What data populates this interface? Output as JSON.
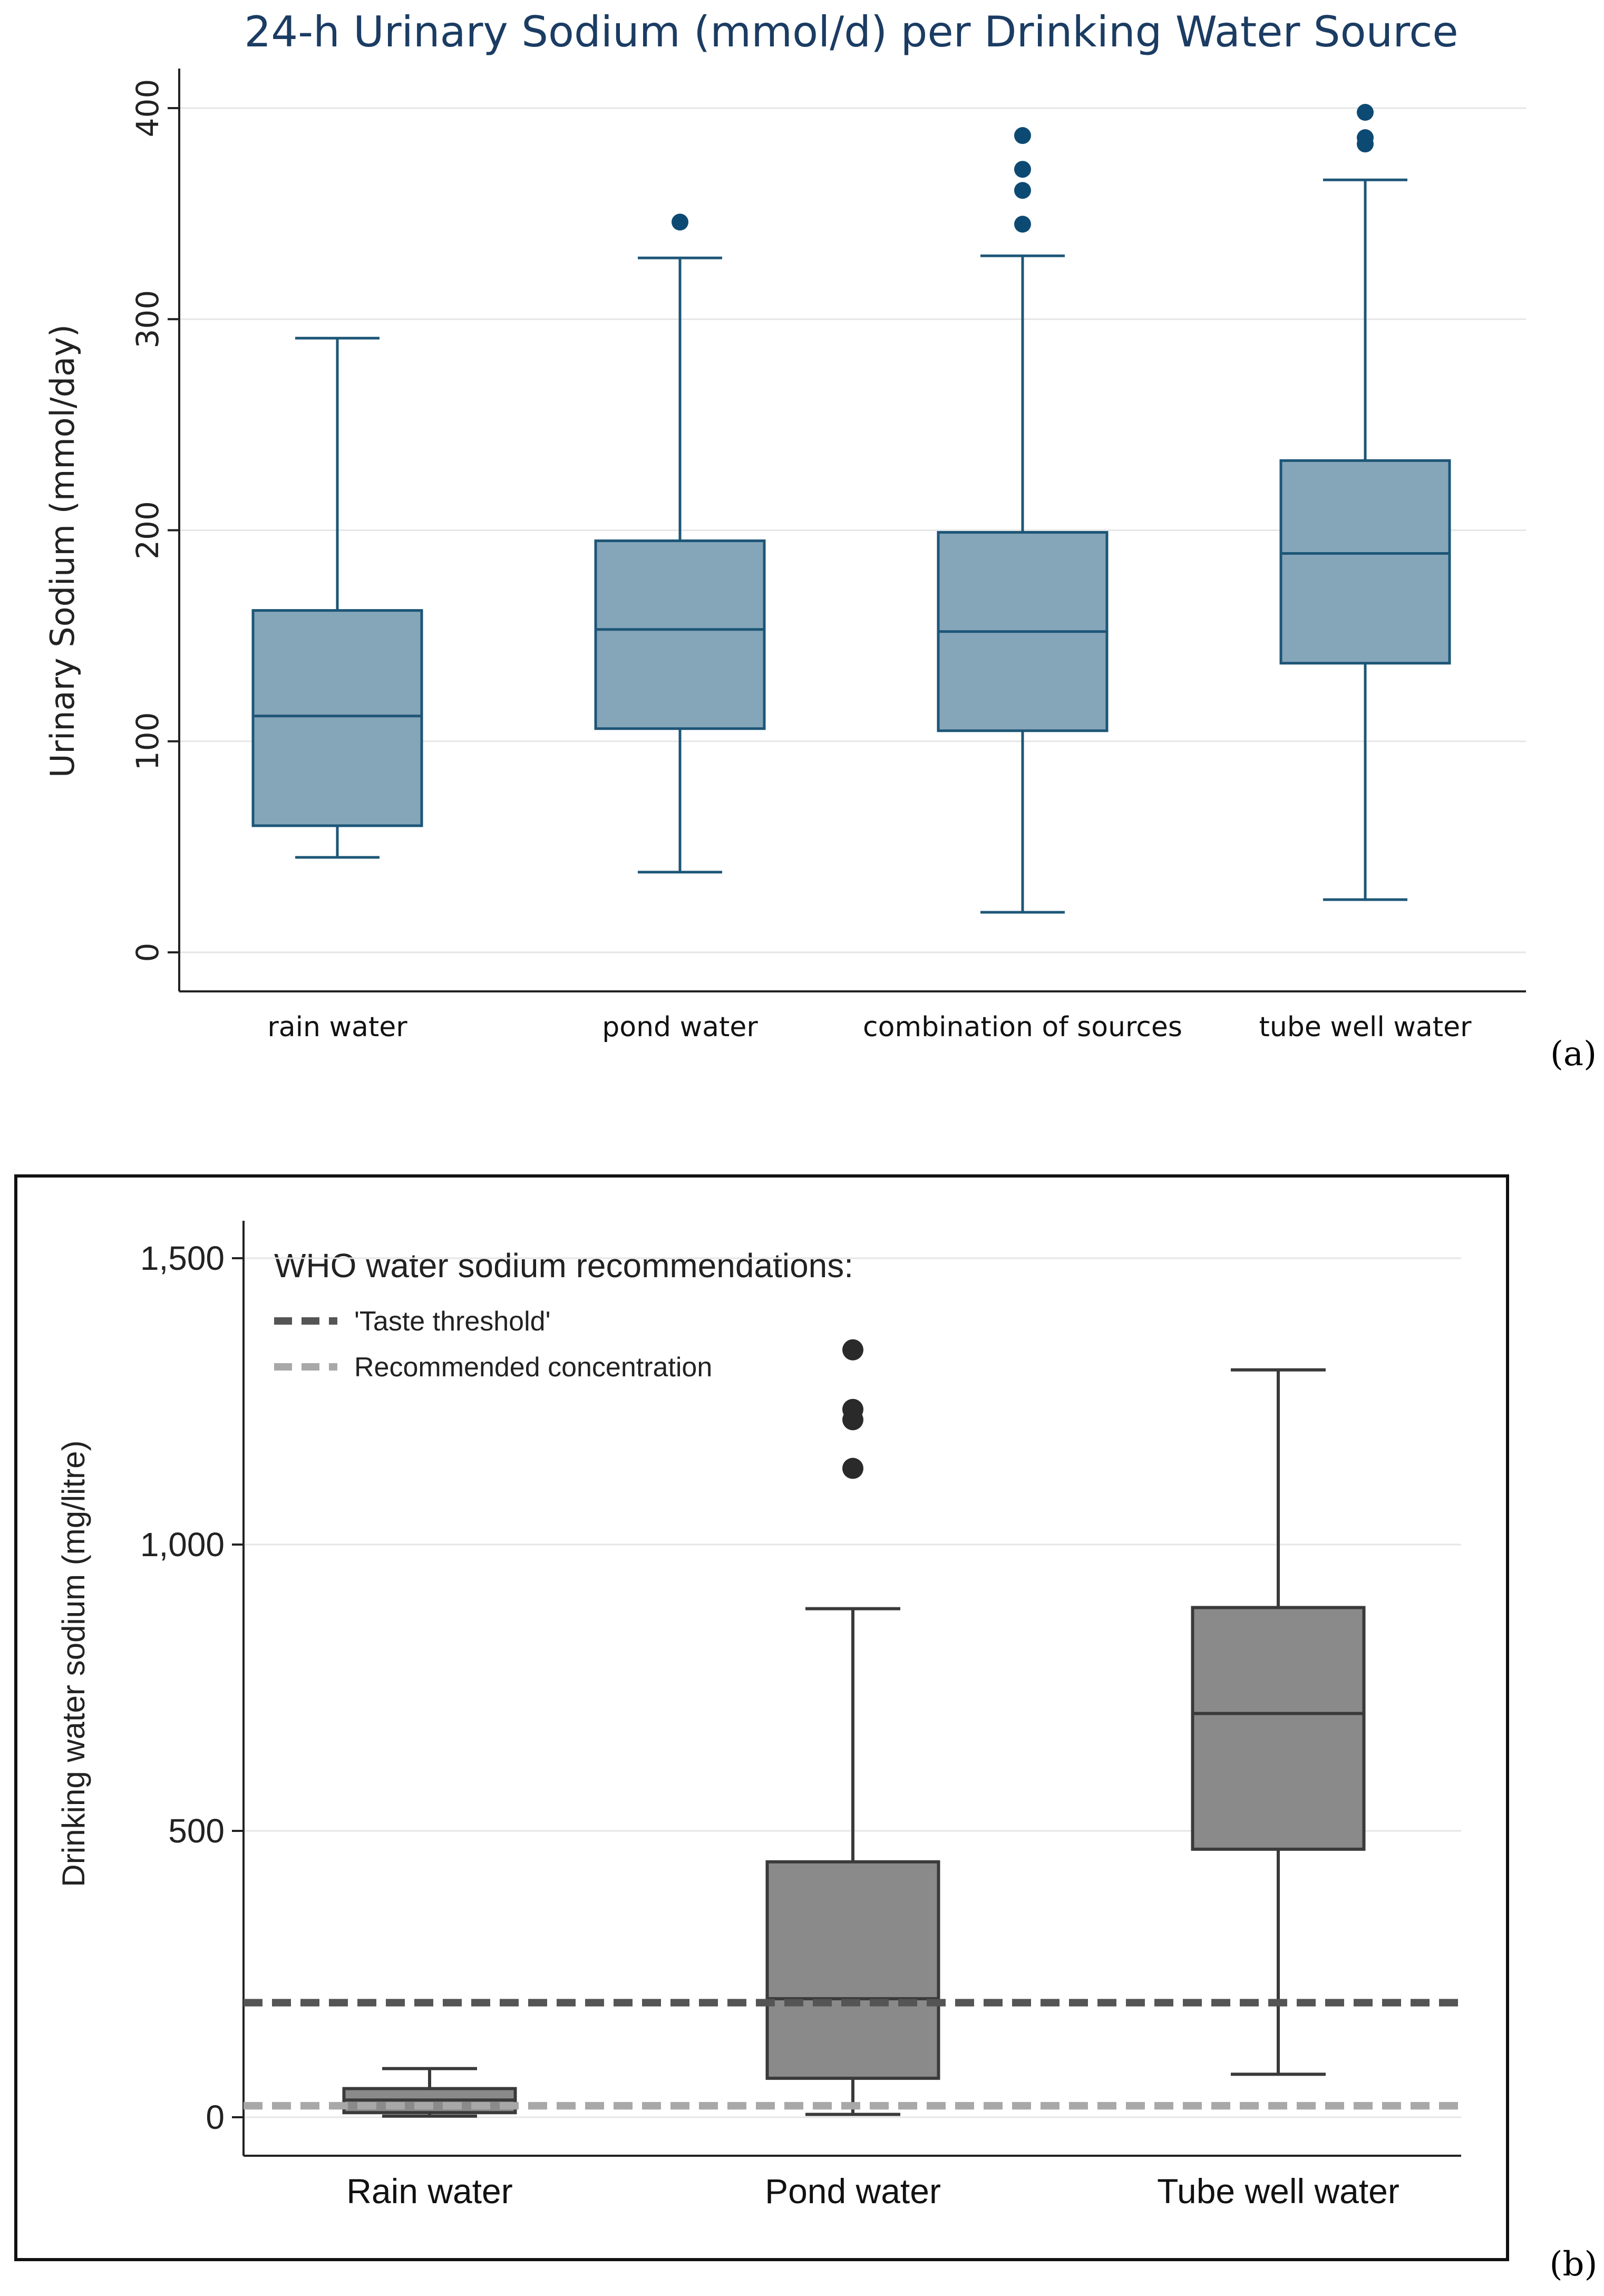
{
  "chart_data": [
    {
      "type": "box",
      "panel_label": "(a)",
      "title": "24-h Urinary Sodium (mmol/d) per Drinking Water Source",
      "ylabel": "Urinary Sodium (mmol/day)",
      "xlabel": "",
      "ylim": [
        0,
        410
      ],
      "yticks": [
        "0",
        "100",
        "200",
        "300",
        "400"
      ],
      "ytick_values": [
        0,
        100,
        200,
        300,
        400
      ],
      "grid": true,
      "colors": {
        "box_fill": "#85a5b9",
        "line": "#1d5677",
        "title": "#1b3c63",
        "outlier": "#0d4a73"
      },
      "categories": [
        "rain water",
        "pond water",
        "combination of sources",
        "tube well water"
      ],
      "boxes": [
        {
          "whisker_low": 45,
          "q1": 60,
          "median": 112,
          "q3": 162,
          "whisker_high": 291,
          "outliers": []
        },
        {
          "whisker_low": 38,
          "q1": 106,
          "median": 153,
          "q3": 195,
          "whisker_high": 329,
          "outliers": [
            346
          ]
        },
        {
          "whisker_low": 19,
          "q1": 105,
          "median": 152,
          "q3": 199,
          "whisker_high": 330,
          "outliers": [
            345,
            361,
            371,
            387
          ]
        },
        {
          "whisker_low": 25,
          "q1": 137,
          "median": 189,
          "q3": 233,
          "whisker_high": 366,
          "outliers": [
            383,
            386,
            398
          ]
        }
      ]
    },
    {
      "type": "box",
      "panel_label": "(b)",
      "title": "",
      "ylabel": "Drinking water sodium (mg/litre)",
      "xlabel": "",
      "ylim": [
        -50,
        1600
      ],
      "yticks": [
        "0",
        "500",
        "1,000",
        "1,500"
      ],
      "ytick_values": [
        0,
        500,
        1000,
        1500
      ],
      "grid": true,
      "colors": {
        "box_fill": "#8a8a8a",
        "line": "#3a3a3a",
        "outlier": "#2a2a2a",
        "taste_line": "#555555",
        "recommended_line": "#a8a8a8"
      },
      "categories": [
        "Rain water",
        "Pond water",
        "Tube well water"
      ],
      "boxes": [
        {
          "whisker_low": 2,
          "q1": 8,
          "median": 30,
          "q3": 50,
          "whisker_high": 85,
          "outliers": []
        },
        {
          "whisker_low": 5,
          "q1": 68,
          "median": 207,
          "q3": 446,
          "whisker_high": 888,
          "outliers": [
            1133,
            1218,
            1236,
            1340
          ]
        },
        {
          "whisker_low": 75,
          "q1": 468,
          "median": 705,
          "q3": 890,
          "whisker_high": 1305,
          "outliers": []
        }
      ],
      "reference_lines": [
        {
          "name": "'Taste threshold'",
          "value": 200,
          "style": "dashed-dark"
        },
        {
          "name": "Recommended concentration",
          "value": 20,
          "style": "dashed-light"
        }
      ],
      "legend": {
        "title": "WHO water sodium recommendations:",
        "placement": "top-left"
      }
    }
  ]
}
